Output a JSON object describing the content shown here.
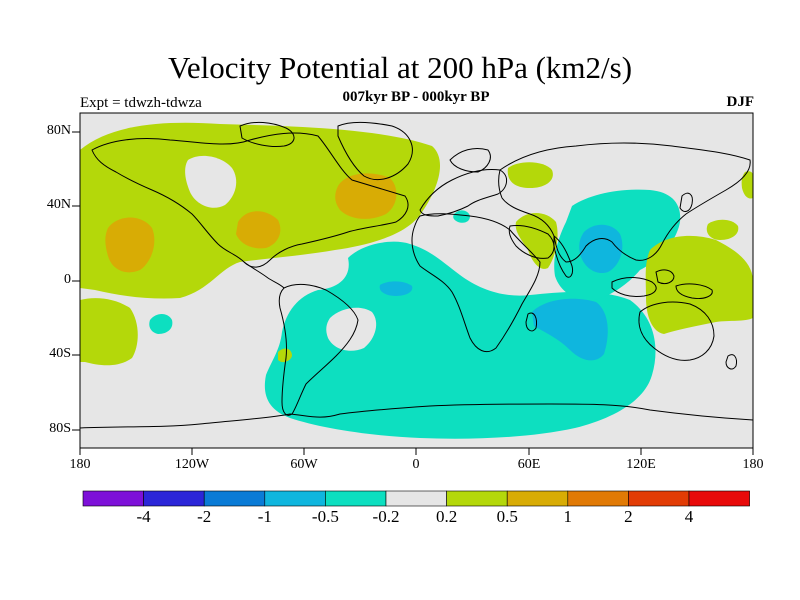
{
  "title": "Velocity Potential at 200 hPa (km2/s)",
  "subtitle": "007kyr BP - 000kyr BP",
  "expt_label": "Expt = tdwzh-tdwza",
  "season": "DJF",
  "map": {
    "projection": "cylindrical-equidistant",
    "lon_range": [
      -180,
      180
    ],
    "lat_range": [
      -90,
      90
    ],
    "y_tick_labels": [
      "80N",
      "40N",
      "0",
      "40S",
      "80S"
    ],
    "x_tick_labels": [
      "180",
      "120W",
      "60W",
      "0",
      "60E",
      "120E",
      "180"
    ],
    "background_color": "#e6e6e6",
    "coastline_color": "#000000"
  },
  "colorbar": {
    "labels": [
      "-4",
      "-2",
      "-1",
      "-0.5",
      "-0.2",
      "0.2",
      "0.5",
      "1",
      "2",
      "4"
    ],
    "colors": [
      "#7d10d8",
      "#2b26d8",
      "#0a7bd6",
      "#0fb6de",
      "#0ddfc0",
      "#e6e6e6",
      "#b4d80a",
      "#d8ac05",
      "#e17a05",
      "#e23c05",
      "#e80a0a"
    ]
  },
  "regions": [
    {
      "name": "negative-southern-ocean",
      "level": "-0.5 to -0.2"
    },
    {
      "name": "negative-indian-ocean",
      "level": "-1 to -0.5"
    },
    {
      "name": "negative-maritime-continent",
      "level": "-1 to -0.5"
    },
    {
      "name": "positive-north-pacific",
      "level": "0.2 to 0.5"
    },
    {
      "name": "positive-north-atlantic",
      "level": "0.5 to 1"
    },
    {
      "name": "positive-west-pacific",
      "level": "0.2 to 0.5"
    }
  ]
}
